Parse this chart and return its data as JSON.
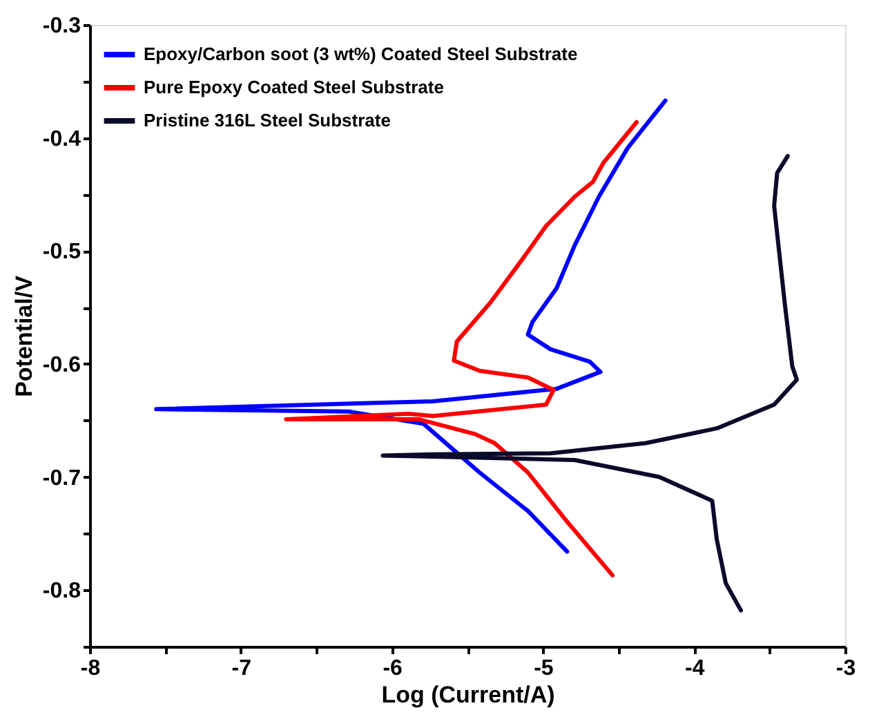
{
  "chart_data": {
    "type": "line",
    "xlabel": "Log (Current/A)",
    "ylabel": "Potential/V",
    "xlim": [
      -8,
      -3
    ],
    "ylim": [
      -0.85,
      -0.3
    ],
    "xticks": [
      -8,
      {
        "value": -7.5,
        "label": null
      },
      -7,
      {
        "value": -6.5,
        "label": null
      },
      -6,
      {
        "value": -5.5,
        "label": null
      },
      -5,
      {
        "value": -4.5,
        "label": null
      },
      -4,
      {
        "value": -3.5,
        "label": null
      },
      -3
    ],
    "yticks": [
      {
        "value": -0.85,
        "label": null
      },
      -0.8,
      {
        "value": -0.75,
        "label": null
      },
      -0.7,
      {
        "value": -0.65,
        "label": null
      },
      -0.6,
      {
        "value": -0.55,
        "label": null
      },
      -0.5,
      {
        "value": -0.45,
        "label": null
      },
      -0.4,
      {
        "value": -0.35,
        "label": null
      },
      -0.3
    ],
    "grid": false,
    "legend": "top left",
    "marker": "none",
    "line_style": "solid",
    "series": [
      {
        "name": "Epoxy/Carbon soot (3 wt%) Coated Steel Substrate",
        "color": "#0000ff",
        "x": [
          -4.84,
          -5.1,
          -5.42,
          -5.79,
          -6.29,
          -7.56,
          -5.73,
          -4.91,
          -4.62,
          -4.69,
          -4.95,
          -5.1,
          -5.07,
          -4.91,
          -4.79,
          -4.63,
          -4.44,
          -4.19
        ],
        "values": [
          -0.766,
          -0.73,
          -0.696,
          -0.653,
          -0.642,
          -0.64,
          -0.633,
          -0.622,
          -0.607,
          -0.598,
          -0.587,
          -0.574,
          -0.563,
          -0.533,
          -0.495,
          -0.452,
          -0.409,
          -0.367
        ]
      },
      {
        "name": "Pure Epoxy Coated Steel Substrate",
        "color": "#ff0000",
        "x": [
          -4.54,
          -4.85,
          -5.1,
          -5.32,
          -5.45,
          -5.82,
          -6.7,
          -5.89,
          -5.73,
          -4.98,
          -4.93,
          -5.1,
          -5.42,
          -5.59,
          -5.57,
          -5.35,
          -5.14,
          -4.98,
          -4.79,
          -4.67,
          -4.6,
          -4.38
        ],
        "values": [
          -0.787,
          -0.738,
          -0.696,
          -0.67,
          -0.662,
          -0.649,
          -0.649,
          -0.644,
          -0.646,
          -0.636,
          -0.623,
          -0.612,
          -0.606,
          -0.597,
          -0.58,
          -0.546,
          -0.508,
          -0.478,
          -0.452,
          -0.439,
          -0.422,
          -0.386
        ]
      },
      {
        "name": "Pristine 316L Steel Substrate",
        "color": "#0a0a2a",
        "x": [
          -3.69,
          -3.79,
          -3.85,
          -3.88,
          -4.23,
          -4.79,
          -5.73,
          -6.06,
          -5.73,
          -4.95,
          -4.32,
          -3.85,
          -3.47,
          -3.32,
          -3.35,
          -3.4,
          -3.47,
          -3.45,
          -3.38
        ],
        "values": [
          -0.818,
          -0.794,
          -0.755,
          -0.721,
          -0.7,
          -0.685,
          -0.682,
          -0.681,
          -0.68,
          -0.679,
          -0.67,
          -0.657,
          -0.636,
          -0.614,
          -0.602,
          -0.546,
          -0.46,
          -0.431,
          -0.416
        ]
      }
    ]
  }
}
